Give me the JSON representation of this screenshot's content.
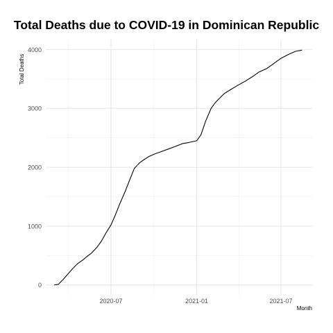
{
  "chart_data": {
    "type": "line",
    "title": "Total Deaths due to COVID-19 in Dominican Republic",
    "xlabel": "Month",
    "ylabel": "Total Deaths",
    "x_ticks": [
      {
        "date": "2020-07-01",
        "label": "2020-07"
      },
      {
        "date": "2021-01-01",
        "label": "2021-01"
      },
      {
        "date": "2021-07-01",
        "label": "2021-07"
      }
    ],
    "y_ticks": [
      0,
      1000,
      2000,
      3000,
      4000
    ],
    "xlim": [
      "2020-02-12",
      "2021-09-06"
    ],
    "ylim": [
      -180,
      4170
    ],
    "grid": true,
    "series": [
      {
        "color": "#000000",
        "x": [
          "2020-03-01",
          "2020-03-10",
          "2020-03-20",
          "2020-04-01",
          "2020-04-10",
          "2020-04-20",
          "2020-05-01",
          "2020-05-10",
          "2020-05-20",
          "2020-06-01",
          "2020-06-10",
          "2020-06-20",
          "2020-07-01",
          "2020-07-10",
          "2020-07-20",
          "2020-08-01",
          "2020-08-10",
          "2020-08-20",
          "2020-09-01",
          "2020-09-10",
          "2020-09-20",
          "2020-10-01",
          "2020-10-15",
          "2020-11-01",
          "2020-11-15",
          "2020-12-01",
          "2020-12-15",
          "2021-01-01",
          "2021-01-10",
          "2021-01-20",
          "2021-02-01",
          "2021-02-10",
          "2021-02-20",
          "2021-03-01",
          "2021-03-15",
          "2021-04-01",
          "2021-04-15",
          "2021-05-01",
          "2021-05-15",
          "2021-06-01",
          "2021-06-15",
          "2021-07-01",
          "2021-07-15",
          "2021-08-01",
          "2021-08-15"
        ],
        "y": [
          0,
          10,
          90,
          200,
          280,
          360,
          420,
          480,
          540,
          640,
          740,
          880,
          1020,
          1180,
          1380,
          1600,
          1780,
          1980,
          2080,
          2130,
          2180,
          2220,
          2260,
          2310,
          2350,
          2400,
          2420,
          2450,
          2550,
          2780,
          3000,
          3100,
          3180,
          3250,
          3320,
          3400,
          3460,
          3540,
          3620,
          3680,
          3760,
          3850,
          3910,
          3970,
          3990
        ]
      }
    ]
  }
}
